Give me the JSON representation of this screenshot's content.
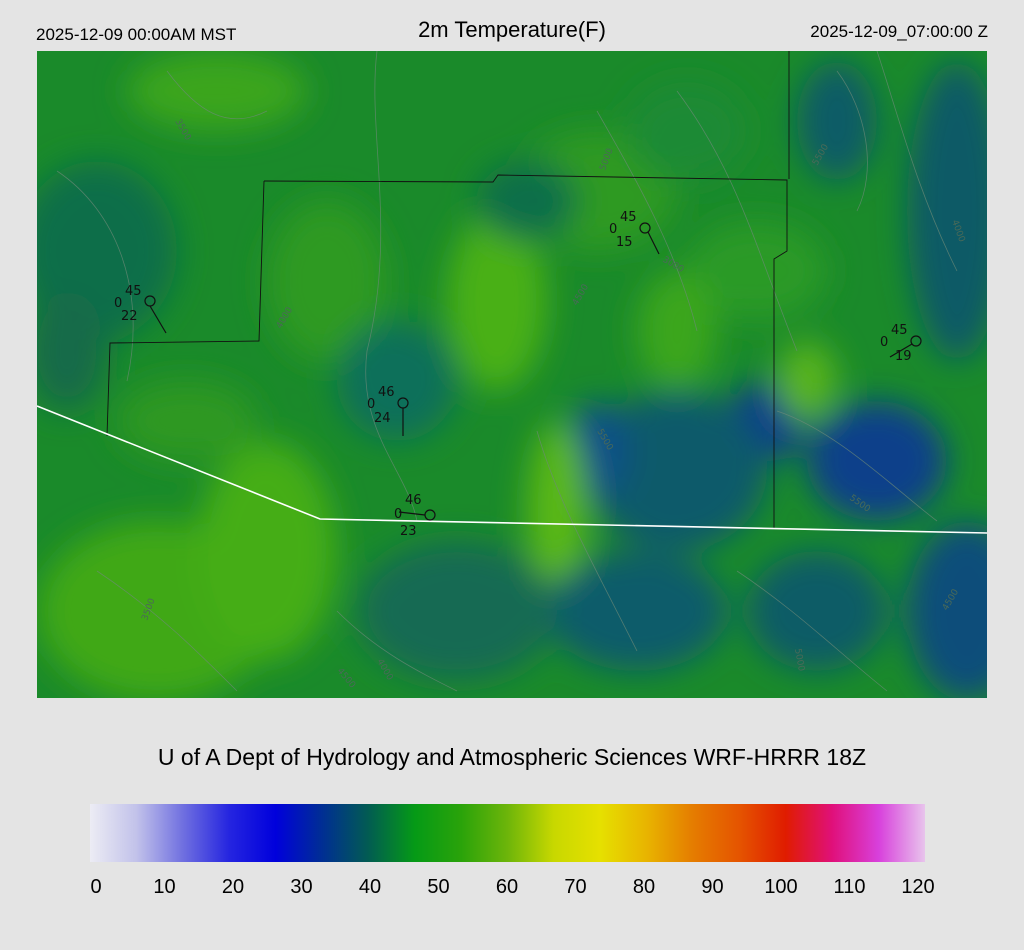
{
  "header": {
    "local_time": "2025-12-09 00:00AM MST",
    "title": "2m Temperature(F)",
    "utc_time": "2025-12-09_07:00:00 Z"
  },
  "credit": "U of A Dept of Hydrology and Atmospheric Sciences WRF-HRRR 18Z",
  "colorbar": {
    "ticks": [
      "0",
      "10",
      "20",
      "30",
      "40",
      "50",
      "60",
      "70",
      "80",
      "90",
      "100",
      "110",
      "120"
    ],
    "colors": [
      "#ececf4",
      "#c2c2ea",
      "#7070e0",
      "#2525e0",
      "#0000dc",
      "#002e94",
      "#025c52",
      "#059a16",
      "#2aa30a",
      "#6db50a",
      "#c8d800",
      "#e6e000",
      "#e8b400",
      "#e57c00",
      "#e55400",
      "#e01c00",
      "#e0107a",
      "#d840dc",
      "#e8c4ec"
    ]
  },
  "stations": [
    {
      "top": "45",
      "left": "0",
      "bottom": "22"
    },
    {
      "top": "45",
      "left": "0",
      "bottom": "15"
    },
    {
      "top": "46",
      "left": "0",
      "bottom": "24"
    },
    {
      "top": "46",
      "left": "0",
      "bottom": "23"
    },
    {
      "top": "45",
      "left": "0",
      "bottom": "19"
    }
  ],
  "contour_labels": [
    "3500",
    "4000",
    "4500",
    "5000",
    "5500",
    "3000"
  ]
}
